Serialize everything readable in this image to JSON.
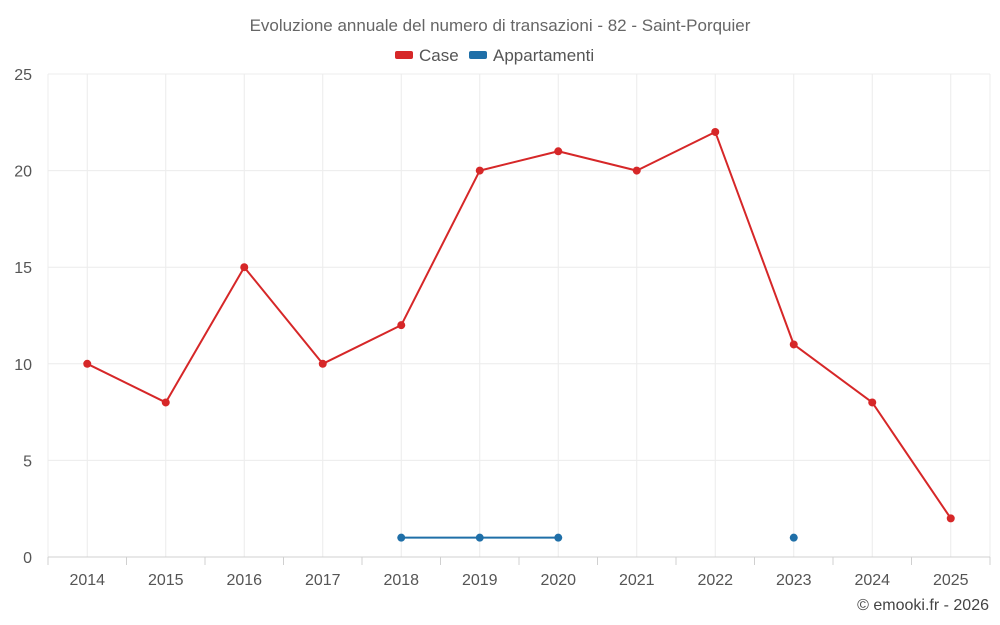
{
  "chart_data": {
    "type": "line",
    "title": "Evoluzione annuale del numero di transazioni - 82 - Saint-Porquier",
    "x": [
      "2014",
      "2015",
      "2016",
      "2017",
      "2018",
      "2019",
      "2020",
      "2021",
      "2022",
      "2023",
      "2024",
      "2025"
    ],
    "ylim": [
      0,
      25
    ],
    "yticks": [
      0,
      5,
      10,
      15,
      20,
      25
    ],
    "grid": true,
    "legend_position": "top-center",
    "series": [
      {
        "name": "Case",
        "color": "#d62728",
        "values": [
          10,
          8,
          15,
          10,
          12,
          20,
          21,
          20,
          22,
          11,
          8,
          2
        ]
      },
      {
        "name": "Appartamenti",
        "color": "#1f6fa8",
        "values": [
          null,
          null,
          null,
          null,
          1,
          1,
          1,
          null,
          null,
          1,
          null,
          null
        ]
      }
    ]
  },
  "credit": "© emooki.fr - 2026"
}
